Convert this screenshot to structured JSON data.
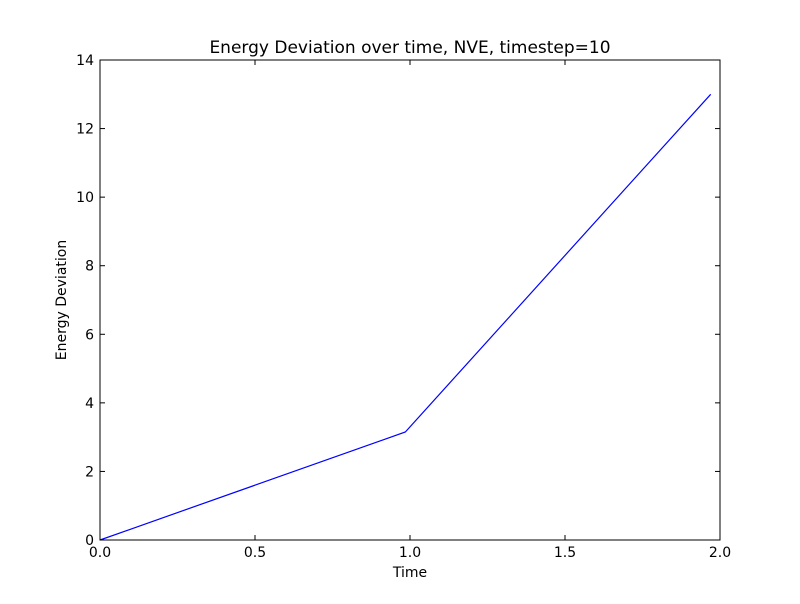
{
  "chart_data": {
    "type": "line",
    "title": "Energy Deviation over time, NVE, timestep=10",
    "xlabel": "Time",
    "ylabel": "Energy Deviation",
    "xlim": [
      0.0,
      2.0
    ],
    "ylim": [
      0,
      14
    ],
    "x_ticks": [
      "0.0",
      "0.5",
      "1.0",
      "1.5",
      "2.0"
    ],
    "y_ticks": [
      "0",
      "2",
      "4",
      "6",
      "8",
      "10",
      "12",
      "14"
    ],
    "grid": false,
    "legend": "none",
    "series": [
      {
        "color": "#0000ff",
        "x": [
          0.0,
          0.985,
          1.97
        ],
        "y": [
          0.0,
          3.15,
          13.0
        ]
      }
    ]
  }
}
